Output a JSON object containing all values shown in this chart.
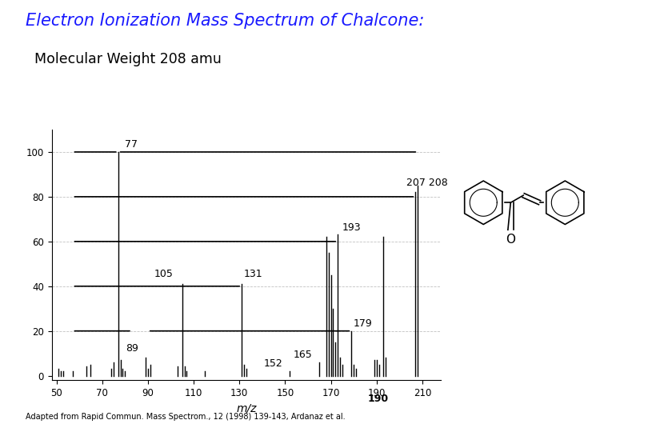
{
  "title_line1": "Electron Ionization Mass Spectrum of Chalcone:",
  "title_line2": "  Molecular Weight 208 amu",
  "title_color": "#1a1aff",
  "title_line2_color": "#000000",
  "xlabel": "m/z",
  "xlim": [
    48,
    218
  ],
  "ylim": [
    -2,
    110
  ],
  "xticks": [
    50,
    70,
    90,
    110,
    130,
    150,
    170,
    190,
    210
  ],
  "yticks": [
    0,
    20,
    40,
    60,
    80,
    100
  ],
  "background_color": "#ffffff",
  "peaks": [
    {
      "mz": 51,
      "intensity": 3
    },
    {
      "mz": 52,
      "intensity": 2
    },
    {
      "mz": 53,
      "intensity": 2
    },
    {
      "mz": 57,
      "intensity": 2
    },
    {
      "mz": 63,
      "intensity": 4
    },
    {
      "mz": 65,
      "intensity": 5
    },
    {
      "mz": 74,
      "intensity": 3
    },
    {
      "mz": 75,
      "intensity": 6
    },
    {
      "mz": 77,
      "intensity": 100
    },
    {
      "mz": 78,
      "intensity": 7
    },
    {
      "mz": 79,
      "intensity": 3
    },
    {
      "mz": 80,
      "intensity": 2
    },
    {
      "mz": 89,
      "intensity": 8
    },
    {
      "mz": 90,
      "intensity": 3
    },
    {
      "mz": 91,
      "intensity": 5
    },
    {
      "mz": 103,
      "intensity": 4
    },
    {
      "mz": 105,
      "intensity": 41
    },
    {
      "mz": 106,
      "intensity": 4
    },
    {
      "mz": 107,
      "intensity": 2
    },
    {
      "mz": 115,
      "intensity": 2
    },
    {
      "mz": 131,
      "intensity": 41
    },
    {
      "mz": 132,
      "intensity": 5
    },
    {
      "mz": 133,
      "intensity": 3
    },
    {
      "mz": 152,
      "intensity": 2
    },
    {
      "mz": 165,
      "intensity": 6
    },
    {
      "mz": 168,
      "intensity": 62
    },
    {
      "mz": 169,
      "intensity": 55
    },
    {
      "mz": 170,
      "intensity": 45
    },
    {
      "mz": 171,
      "intensity": 30
    },
    {
      "mz": 172,
      "intensity": 15
    },
    {
      "mz": 173,
      "intensity": 63
    },
    {
      "mz": 174,
      "intensity": 8
    },
    {
      "mz": 175,
      "intensity": 5
    },
    {
      "mz": 179,
      "intensity": 20
    },
    {
      "mz": 180,
      "intensity": 5
    },
    {
      "mz": 181,
      "intensity": 3
    },
    {
      "mz": 189,
      "intensity": 7
    },
    {
      "mz": 190,
      "intensity": 7
    },
    {
      "mz": 191,
      "intensity": 5
    },
    {
      "mz": 193,
      "intensity": 62
    },
    {
      "mz": 194,
      "intensity": 8
    },
    {
      "mz": 207,
      "intensity": 82
    },
    {
      "mz": 208,
      "intensity": 85
    }
  ],
  "footnote": "Adapted from Rapid Commun. Mass Spectrom., 12 (1998) 139-143, Ardanaz et al.",
  "grid_color": "#999999",
  "peak_color": "#000000",
  "bar_linewidth": 1.0
}
